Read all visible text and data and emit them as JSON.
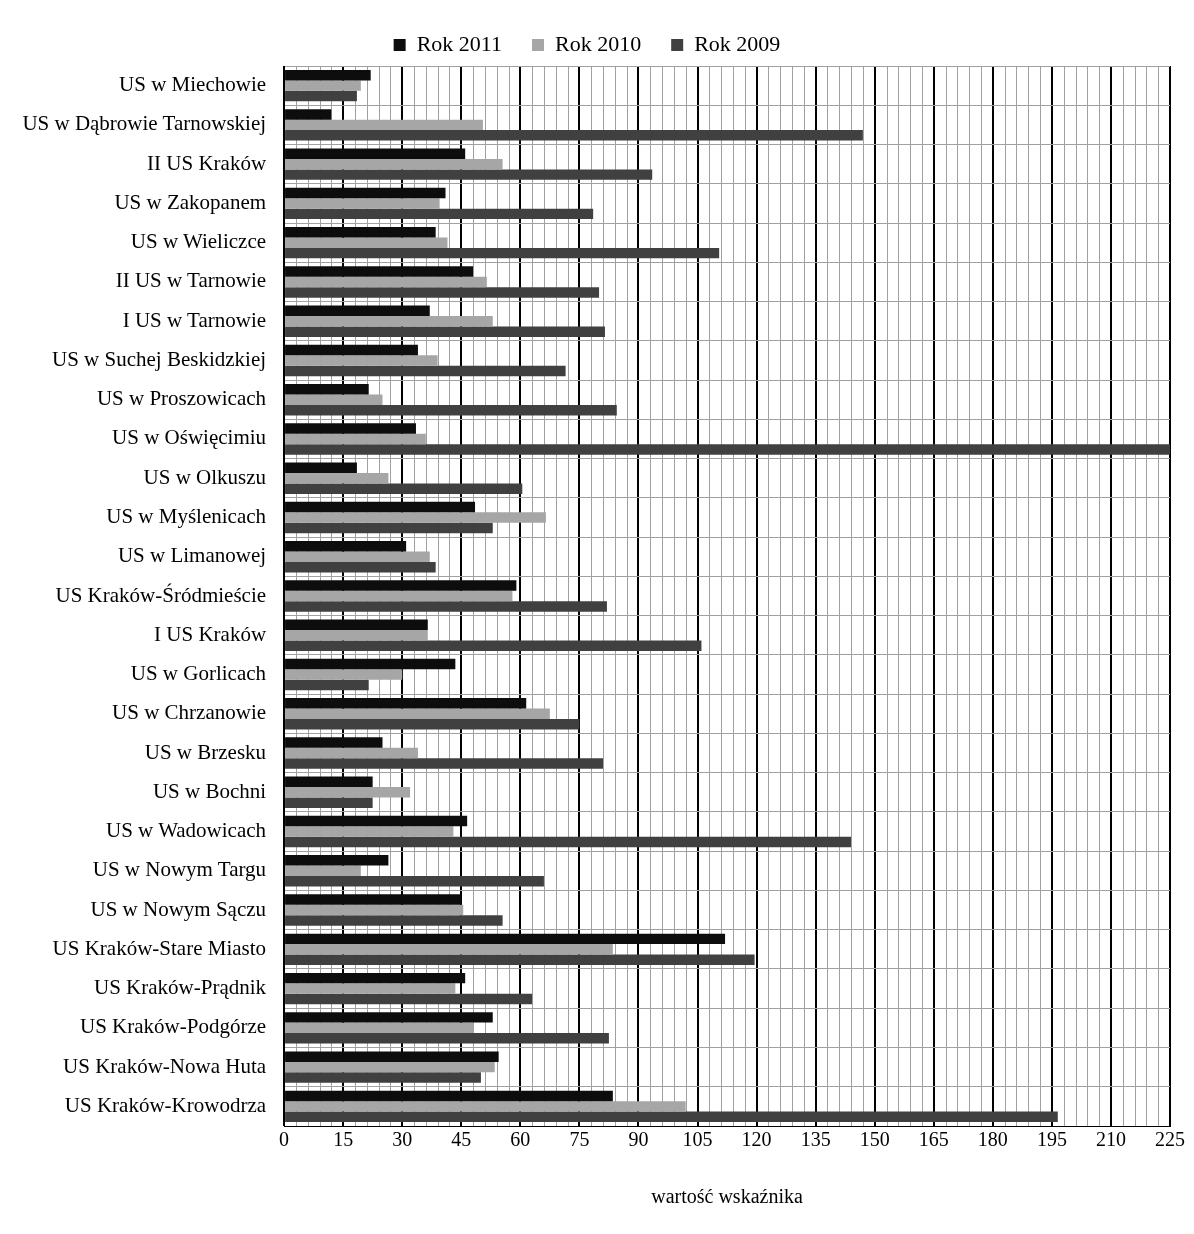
{
  "chart_data": {
    "type": "bar",
    "orientation": "horizontal",
    "xlabel": "wartość wskaźnika",
    "categories": [
      "US w Miechowie",
      "US w Dąbrowie Tarnowskiej",
      "II US Kraków",
      "US w Zakopanem",
      "US w Wieliczce",
      "II US w Tarnowie",
      "I US w Tarnowie",
      "US w Suchej Beskidzkiej",
      "US w Proszowicach",
      "US w Oświęcimiu",
      "US w Olkuszu",
      "US w Myślenicach",
      "US w Limanowej",
      "US Kraków-Śródmieście",
      "I US Kraków",
      "US w Gorlicach",
      "US w Chrzanowie",
      "US w Brzesku",
      "US w Bochni",
      "US w Wadowicach",
      "US w Nowym Targu",
      "US w Nowym Sączu",
      "US Kraków-Stare Miasto",
      "US Kraków-Prądnik",
      "US Kraków-Podgórze",
      "US Kraków-Nowa Huta",
      "US Kraków-Krowodrza"
    ],
    "series": [
      {
        "name": "Rok 2011",
        "color": "#0d0d0d",
        "values": [
          22,
          12,
          46,
          41,
          38.5,
          48,
          37,
          34,
          21.5,
          33.5,
          18.5,
          48.5,
          31,
          59,
          36.5,
          43.5,
          61.5,
          25,
          22.5,
          46.5,
          26.5,
          45,
          112,
          46,
          53,
          54.5,
          83.5
        ]
      },
      {
        "name": "Rok 2010",
        "color": "#a6a6a6",
        "values": [
          19.5,
          50.5,
          55.5,
          39.5,
          41.5,
          51.5,
          53,
          39,
          25,
          36,
          26.5,
          66.5,
          37,
          58,
          36.5,
          30,
          67.5,
          34,
          32,
          43,
          19.5,
          45.5,
          83.5,
          43.5,
          48,
          53.5,
          102
        ]
      },
      {
        "name": "Rok 2009",
        "color": "#404040",
        "values": [
          18.5,
          147,
          93.5,
          78.5,
          110.5,
          80,
          81.5,
          71.5,
          84.5,
          225,
          60.5,
          53,
          38.5,
          82,
          106,
          21.5,
          75,
          81,
          22.5,
          144,
          66,
          55.5,
          119.5,
          63,
          82.5,
          50,
          196.5
        ]
      }
    ],
    "xlim": [
      0,
      225
    ],
    "xticks": [
      0,
      15,
      30,
      45,
      60,
      75,
      90,
      105,
      120,
      135,
      150,
      165,
      180,
      195,
      210,
      225
    ],
    "grid": true,
    "legend": "top"
  }
}
